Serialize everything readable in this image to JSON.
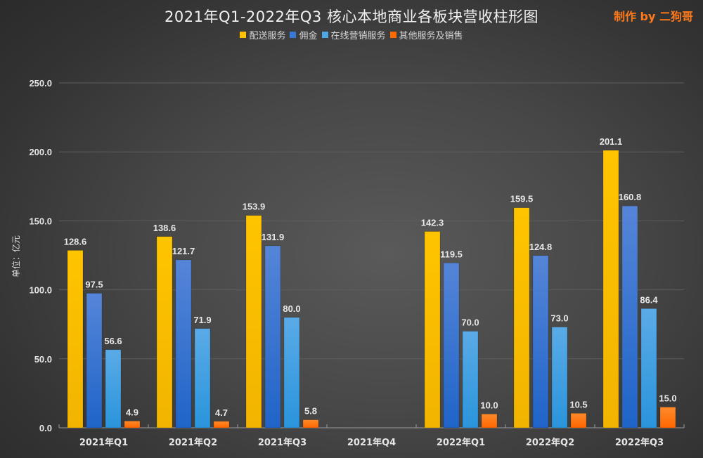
{
  "header": {
    "title": "2021年Q1-2022年Q3 核心本地商业各板块营收柱形图",
    "credit": "制作 by 二狗哥"
  },
  "chart_data": {
    "type": "bar",
    "title": "2021年Q1-2022年Q3 核心本地商业各板块营收柱形图",
    "xlabel": "",
    "ylabel": "单位：亿元",
    "ylim": [
      0,
      250
    ],
    "yticks": [
      0,
      50,
      100,
      150,
      200,
      250
    ],
    "ytick_labels": [
      "0.0",
      "50.0",
      "100.0",
      "150.0",
      "200.0",
      "250.0"
    ],
    "grid": true,
    "legend_position": "top-center",
    "categories": [
      "2021年Q1",
      "2021年Q2",
      "2021年Q3",
      "2021年Q4",
      "2022年Q1",
      "2022年Q2",
      "2022年Q3"
    ],
    "series": [
      {
        "name": "配送服务",
        "color": "#ffc000",
        "values": [
          128.6,
          138.6,
          153.9,
          null,
          142.3,
          159.5,
          201.1
        ]
      },
      {
        "name": "佣金",
        "color": "#3a78d6",
        "values": [
          97.5,
          121.7,
          131.9,
          null,
          119.5,
          124.8,
          160.8
        ]
      },
      {
        "name": "在线营销服务",
        "color": "#4ea6e2",
        "values": [
          56.6,
          71.9,
          80.0,
          null,
          70.0,
          73.0,
          86.4
        ]
      },
      {
        "name": "其他服务及销售",
        "color": "#ff6a00",
        "values": [
          4.9,
          4.7,
          5.8,
          null,
          10.0,
          10.5,
          15.0
        ]
      }
    ]
  }
}
